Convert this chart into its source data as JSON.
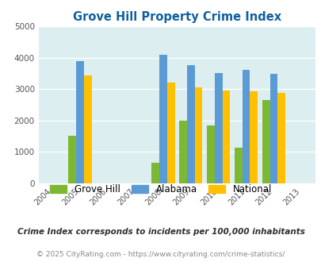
{
  "title": "Grove Hill Property Crime Index",
  "subtitle": "Crime Index corresponds to incidents per 100,000 inhabitants",
  "footer": "© 2025 CityRating.com - https://www.cityrating.com/crime-statistics/",
  "years": [
    2004,
    2005,
    2006,
    2007,
    2008,
    2009,
    2010,
    2011,
    2012,
    2013
  ],
  "data_years": [
    2005,
    2008,
    2009,
    2010,
    2011,
    2012
  ],
  "grove_hill": [
    1520,
    650,
    2000,
    1840,
    1130,
    2660
  ],
  "alabama": [
    3900,
    4080,
    3770,
    3510,
    3600,
    3490
  ],
  "national": [
    3430,
    3200,
    3050,
    2960,
    2940,
    2870
  ],
  "grove_hill_color": "#7db832",
  "alabama_color": "#5b9bd5",
  "national_color": "#ffc000",
  "bg_color": "#ddeef0",
  "ylim": [
    0,
    5000
  ],
  "yticks": [
    0,
    1000,
    2000,
    3000,
    4000,
    5000
  ],
  "title_color": "#1060a0",
  "subtitle_color": "#303030",
  "footer_color": "#888888",
  "bar_width": 0.28
}
